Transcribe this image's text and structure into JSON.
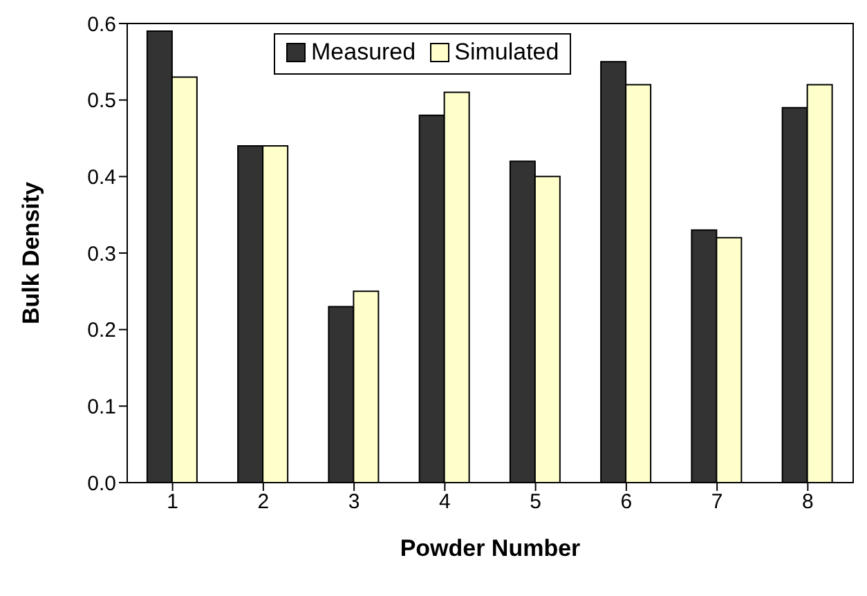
{
  "chart_data": {
    "type": "bar",
    "xlabel": "Powder Number",
    "ylabel": "Bulk Density",
    "categories": [
      "1",
      "2",
      "3",
      "4",
      "5",
      "6",
      "7",
      "8"
    ],
    "series": [
      {
        "name": "Measured",
        "color": "#333333",
        "values": [
          0.59,
          0.44,
          0.23,
          0.48,
          0.42,
          0.55,
          0.33,
          0.49
        ]
      },
      {
        "name": "Simulated",
        "color": "#ffffcc",
        "values": [
          0.53,
          0.44,
          0.25,
          0.51,
          0.4,
          0.52,
          0.32,
          0.52
        ]
      }
    ],
    "ylim": [
      0,
      0.6
    ],
    "yticks": [
      {
        "value": 0,
        "label": "0.0"
      },
      0.1,
      0.2,
      0.3,
      0.4,
      0.5,
      0.6
    ],
    "legend": "top",
    "grid": false
  }
}
